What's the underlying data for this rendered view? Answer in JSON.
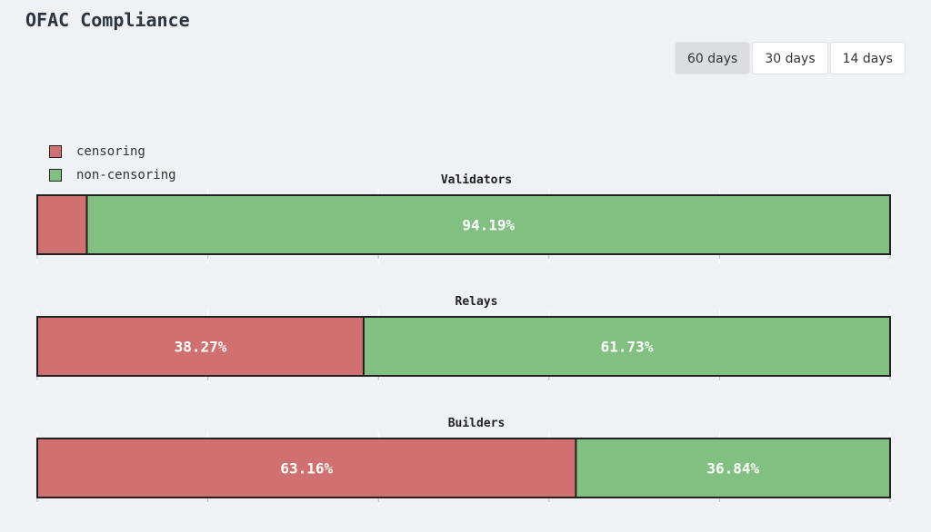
{
  "page": {
    "title": "OFAC Compliance"
  },
  "range_buttons": [
    {
      "label": "60 days",
      "active": true
    },
    {
      "label": "30 days",
      "active": false
    },
    {
      "label": "14 days",
      "active": false
    }
  ],
  "colors": {
    "censoring": "#d07070",
    "non_censoring": "#82c082",
    "border": "#222222",
    "background": "#f0f1f4"
  },
  "chart_data": {
    "type": "bar",
    "orientation": "horizontal-stacked-100",
    "legend_placement": "top-left",
    "legend": [
      "censoring",
      "non-censoring"
    ],
    "panels": [
      {
        "title": "Validators",
        "censoring": 5.81,
        "non_censoring": 94.19,
        "labels": [
          "",
          "94.19%"
        ]
      },
      {
        "title": "Relays",
        "censoring": 38.27,
        "non_censoring": 61.73,
        "labels": [
          "38.27%",
          "61.73%"
        ]
      },
      {
        "title": "Builders",
        "censoring": 63.16,
        "non_censoring": 36.84,
        "labels": [
          "63.16%",
          "36.84%"
        ]
      }
    ],
    "xlim": [
      0,
      100
    ]
  }
}
